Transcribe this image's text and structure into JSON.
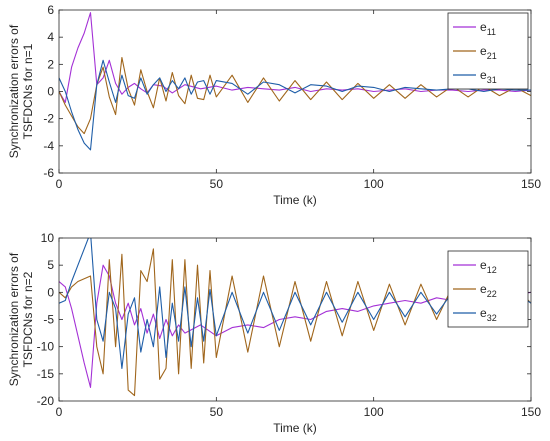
{
  "chart_data": [
    {
      "type": "line",
      "xlabel": "Time (k)",
      "ylabel": [
        "Synchronization errors of",
        "TSFDCNs for n=1"
      ],
      "xlim": [
        0,
        150
      ],
      "ylim": [
        -6,
        6
      ],
      "xticks": [
        0,
        50,
        100,
        150
      ],
      "yticks": [
        6,
        4,
        2,
        0,
        -2,
        -4,
        -6
      ],
      "grid": false,
      "legend_position": "top-right",
      "series": [
        {
          "name": "e11",
          "name_main": "e",
          "name_sub": "11",
          "color": "#a431d6",
          "x": [
            0,
            2,
            4,
            6,
            8,
            10,
            12,
            14,
            16,
            18,
            20,
            22,
            24,
            26,
            28,
            30,
            33,
            36,
            40,
            45,
            50,
            55,
            60,
            65,
            70,
            75,
            80,
            85,
            90,
            95,
            100,
            105,
            110,
            115,
            120,
            125,
            130,
            135,
            140,
            145,
            150
          ],
          "y": [
            0,
            -0.8,
            1.8,
            3.2,
            4.3,
            5.8,
            0.5,
            1.0,
            2.3,
            0.6,
            -0.2,
            0.3,
            0.6,
            0.2,
            -0.1,
            0.5,
            0.4,
            -0.1,
            0.5,
            0.2,
            0.4,
            0.1,
            0.3,
            0.2,
            0.1,
            0.3,
            0.0,
            0.2,
            0.1,
            0.2,
            0.0,
            0.1,
            0.2,
            0.0,
            0.1,
            0.1,
            0.0,
            0.1,
            0.1,
            0.0,
            0.1
          ]
        },
        {
          "name": "e21",
          "name_main": "e",
          "name_sub": "21",
          "color": "#a0661c",
          "x": [
            0,
            2,
            4,
            6,
            8,
            10,
            12,
            14,
            16,
            18,
            20,
            22,
            24,
            26,
            28,
            30,
            32,
            34,
            36,
            38,
            40,
            42,
            44,
            46,
            48,
            50,
            55,
            60,
            65,
            70,
            75,
            80,
            85,
            90,
            95,
            100,
            105,
            110,
            115,
            120,
            125,
            130,
            135,
            140,
            145,
            150
          ],
          "y": [
            0,
            -1.0,
            -1.8,
            -2.6,
            -3.1,
            -2.0,
            0.5,
            1.8,
            -0.4,
            -1.7,
            2.5,
            0.2,
            -1.0,
            1.6,
            0.0,
            -1.2,
            1.0,
            -0.7,
            1.4,
            -0.3,
            -0.9,
            1.2,
            -0.5,
            -0.6,
            1.2,
            -0.4,
            1.2,
            -0.8,
            1.0,
            -0.7,
            0.8,
            -0.6,
            0.7,
            -0.6,
            0.6,
            -0.5,
            0.5,
            -0.5,
            0.5,
            -0.4,
            0.4,
            -0.4,
            0.4,
            -0.3,
            0.3,
            -0.3
          ]
        },
        {
          "name": "e31",
          "name_main": "e",
          "name_sub": "31",
          "color": "#1f5ea8",
          "x": [
            0,
            2,
            4,
            6,
            8,
            10,
            12,
            14,
            16,
            18,
            20,
            22,
            24,
            26,
            28,
            30,
            32,
            34,
            36,
            38,
            40,
            42,
            44,
            46,
            48,
            50,
            55,
            60,
            65,
            70,
            75,
            80,
            85,
            90,
            95,
            100,
            105,
            110,
            115,
            120,
            125,
            130,
            135,
            140,
            145,
            150
          ],
          "y": [
            1.0,
            0.0,
            -1.5,
            -2.8,
            -3.8,
            -4.3,
            0.5,
            2.3,
            0.7,
            -0.8,
            1.2,
            -0.3,
            -0.5,
            1.0,
            -0.2,
            0.5,
            1.0,
            0.0,
            0.8,
            0.2,
            1.0,
            -0.2,
            0.7,
            0.8,
            -0.2,
            0.8,
            0.6,
            -0.2,
            0.7,
            0.5,
            -0.1,
            0.5,
            0.4,
            0.0,
            0.4,
            0.3,
            0.0,
            0.3,
            0.2,
            0.1,
            0.2,
            0.2,
            0.0,
            0.2,
            0.1,
            0.1
          ]
        }
      ]
    },
    {
      "type": "line",
      "xlabel": "Time (k)",
      "ylabel": [
        "Synchronization errors of",
        "TSFDCNs for n=2"
      ],
      "xlim": [
        0,
        150
      ],
      "ylim": [
        -20,
        10
      ],
      "xticks": [
        0,
        50,
        100,
        150
      ],
      "yticks": [
        10,
        5,
        0,
        -5,
        -10,
        -15,
        -20
      ],
      "grid": false,
      "legend_position": "top-right",
      "series": [
        {
          "name": "e12",
          "name_main": "e",
          "name_sub": "12",
          "color": "#a431d6",
          "x": [
            0,
            2,
            4,
            6,
            8,
            10,
            12,
            14,
            16,
            18,
            20,
            22,
            24,
            26,
            28,
            30,
            32,
            34,
            36,
            38,
            40,
            45,
            50,
            55,
            60,
            65,
            70,
            75,
            80,
            85,
            90,
            95,
            100,
            105,
            110,
            115,
            120,
            125,
            130,
            135,
            140,
            145,
            150
          ],
          "y": [
            2.0,
            1.0,
            -3.0,
            -8.0,
            -13.0,
            -17.5,
            -2.0,
            5.0,
            3.0,
            -2.0,
            -5.0,
            -2.0,
            -6.0,
            -3.0,
            -7.5,
            -4.0,
            -8.5,
            -5.0,
            -8.0,
            -6.0,
            -7.5,
            -6.0,
            -8.0,
            -6.5,
            -6.0,
            -6.5,
            -5.0,
            -4.5,
            -5.0,
            -3.5,
            -3.0,
            -3.5,
            -2.5,
            -2.0,
            -1.5,
            -2.0,
            -1.0,
            -1.5,
            -0.5,
            -1.0,
            0.0,
            -0.5,
            0.0
          ]
        },
        {
          "name": "e22",
          "name_main": "e",
          "name_sub": "22",
          "color": "#a0661c",
          "x": [
            0,
            2,
            4,
            6,
            8,
            10,
            12,
            14,
            16,
            18,
            20,
            22,
            24,
            26,
            28,
            30,
            32,
            34,
            36,
            38,
            40,
            42,
            44,
            46,
            48,
            50,
            55,
            60,
            65,
            70,
            75,
            80,
            85,
            90,
            95,
            100,
            105,
            110,
            115,
            120,
            125,
            130,
            135,
            140,
            145,
            150
          ],
          "y": [
            0,
            -1.0,
            1.0,
            2.0,
            2.5,
            3.0,
            -10.0,
            -15.0,
            6.0,
            -10.0,
            7.0,
            -18.0,
            -19.0,
            4.0,
            2.0,
            8.0,
            -16.0,
            -14.0,
            6.0,
            -15.0,
            6.0,
            -14.0,
            5.0,
            -13.0,
            4.0,
            -12.0,
            3.0,
            -11.0,
            3.0,
            -10.0,
            2.0,
            -9.0,
            2.0,
            -8.0,
            2.0,
            -7.0,
            1.5,
            -6.0,
            1.5,
            -5.0,
            1.0,
            -4.0,
            1.0,
            -3.0,
            1.0,
            -2.0
          ]
        },
        {
          "name": "e32",
          "name_main": "e",
          "name_sub": "32",
          "color": "#1f5ea8",
          "x": [
            0,
            2,
            4,
            6,
            8,
            10,
            12,
            14,
            16,
            18,
            20,
            22,
            24,
            26,
            28,
            30,
            32,
            34,
            36,
            38,
            40,
            42,
            44,
            46,
            48,
            50,
            55,
            60,
            65,
            70,
            75,
            80,
            85,
            90,
            95,
            100,
            105,
            110,
            115,
            120,
            125,
            130,
            135,
            140,
            145,
            150
          ],
          "y": [
            -2.0,
            -1.5,
            2.0,
            5.0,
            8.0,
            11.0,
            -5.0,
            -9.0,
            0.0,
            -3.0,
            -14.0,
            -4.0,
            -1.0,
            -11.0,
            -5.0,
            -10.0,
            1.0,
            -12.0,
            -2.0,
            -9.0,
            1.0,
            -10.0,
            -1.0,
            -9.0,
            0.5,
            -8.0,
            0.0,
            -7.5,
            0.0,
            -7.0,
            0.0,
            -6.0,
            0.0,
            -5.5,
            0.0,
            -5.0,
            0.0,
            -4.5,
            0.0,
            -4.0,
            0.0,
            -3.5,
            0.0,
            -3.0,
            0.0,
            -2.0
          ]
        }
      ]
    }
  ]
}
